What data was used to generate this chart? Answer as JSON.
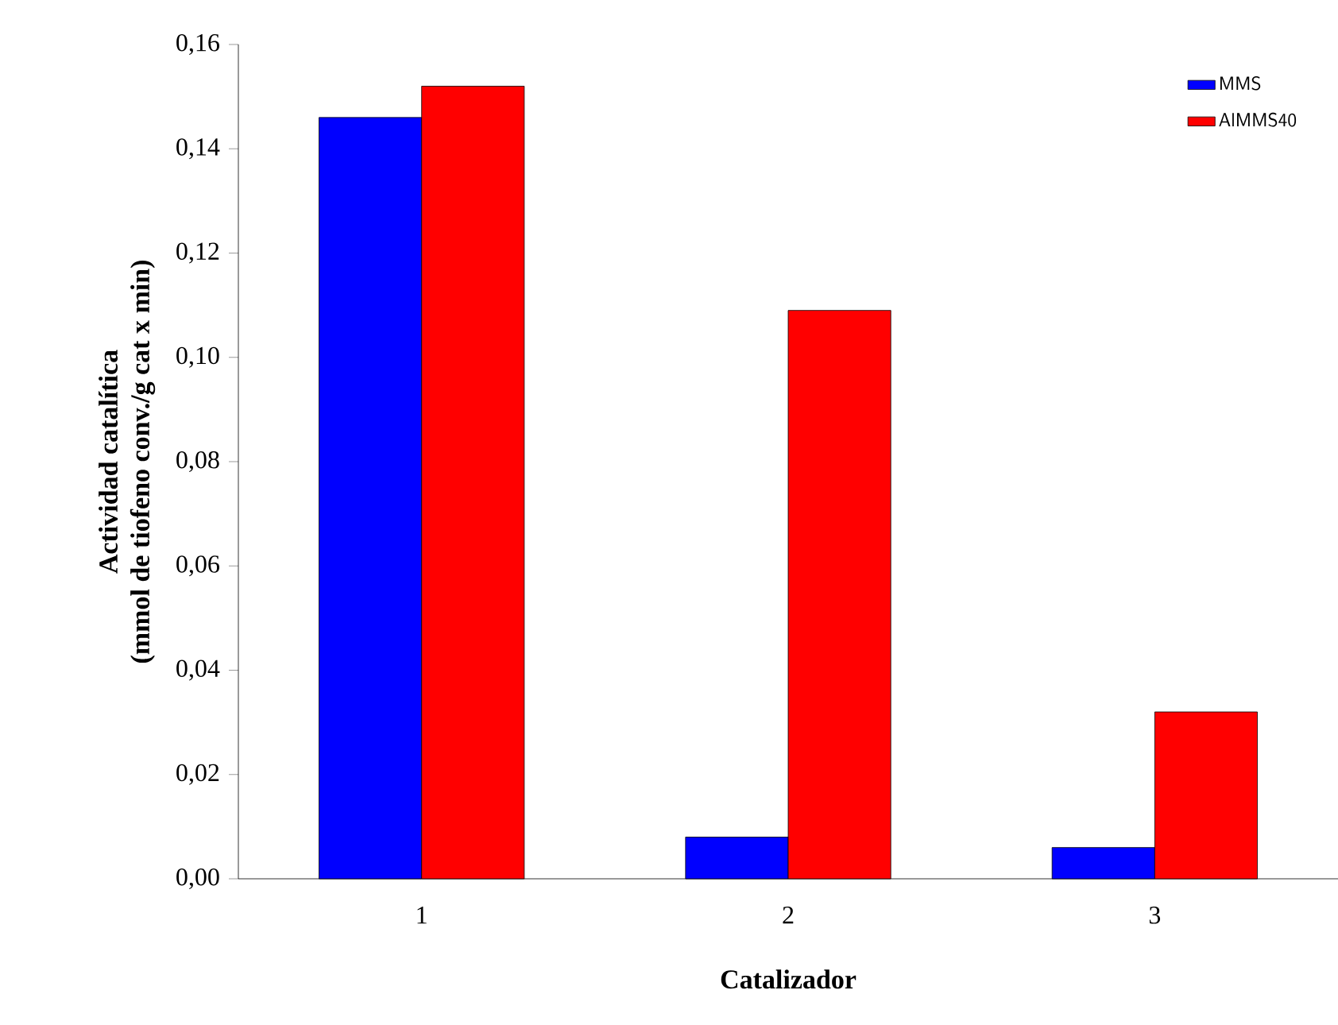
{
  "chart_data": {
    "type": "bar",
    "xlabel": "Catalizador",
    "ylabel": "Actividad catalítica\n(mmol de tiofeno conv./g cat x min)",
    "categories": [
      "1",
      "2",
      "3"
    ],
    "series": [
      {
        "name": "MMS",
        "color": "#0000ff",
        "values": [
          0.146,
          0.008,
          0.006
        ]
      },
      {
        "name": "AlMMS40",
        "color": "#ff0000",
        "values": [
          0.152,
          0.109,
          0.032
        ]
      }
    ],
    "ylim": [
      0,
      0.16
    ],
    "yticks": [
      {
        "value": 0,
        "label": "0,00"
      },
      {
        "value": 0.02,
        "label": "0,02"
      },
      {
        "value": 0.04,
        "label": "0,04"
      },
      {
        "value": 0.06,
        "label": "0,06"
      },
      {
        "value": 0.08,
        "label": "0,08"
      },
      {
        "value": 0.1,
        "label": "0,10"
      },
      {
        "value": 0.12,
        "label": "0,12"
      },
      {
        "value": 0.14,
        "label": "0,14"
      },
      {
        "value": 0.16,
        "label": "0,16"
      }
    ],
    "legend": "top right",
    "grid": false
  }
}
